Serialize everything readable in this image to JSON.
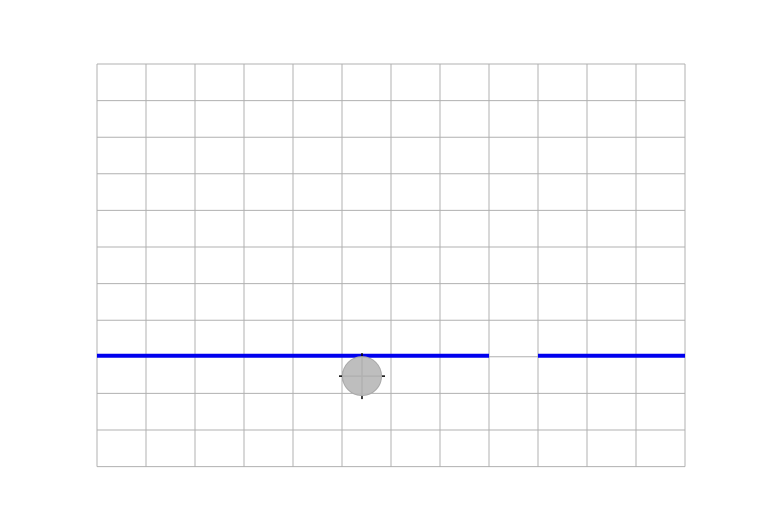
{
  "grid": {
    "columns": 12,
    "rows": 11,
    "show": true,
    "color": "#b0b0b0"
  },
  "platforms": {
    "color": "#0000ee",
    "level_row": 8,
    "segments": [
      {
        "start_col": 0,
        "end_col": 8
      },
      {
        "start_col": 9,
        "end_col": 12
      }
    ]
  },
  "gap": {
    "start_col": 8,
    "end_col": 9
  },
  "ball": {
    "col": 5.5,
    "row": 8.5,
    "color": "#bbbbbb",
    "crosshair_color": "#000000",
    "icon": "ball-with-crosshair"
  }
}
